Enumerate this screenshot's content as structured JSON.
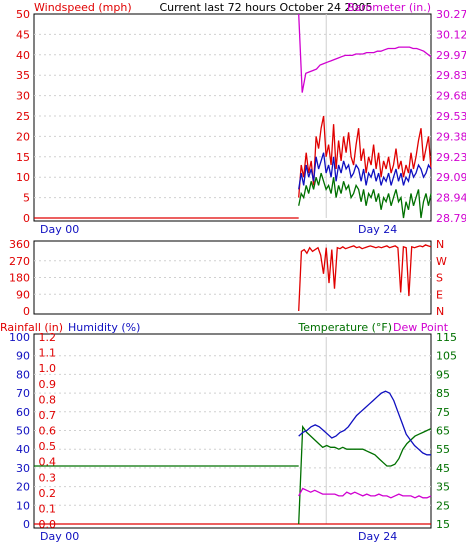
{
  "header": {
    "title": "Current last 72 hours October 24 2005",
    "left_label": "Windspeed (mph)",
    "right_label": "Barometer (in.)"
  },
  "colors": {
    "speed": "#e00000",
    "gust": "#1010c0",
    "avg": "#007000",
    "baro": "#d000d0",
    "direction": "#e00000",
    "rain": "#e00000",
    "humidity": "#1010c0",
    "temperature": "#007000",
    "dewpoint": "#d000d0",
    "grid": "#d0d0d0",
    "frame": "#000000"
  },
  "chart_data": [
    {
      "id": "wind",
      "type": "line",
      "xlabel_ticks": [
        "Day 00",
        "Day 24"
      ],
      "y_left": {
        "label": "Windspeed (mph)",
        "ticks": [
          "0",
          "5",
          "10",
          "15",
          "20",
          "25",
          "30",
          "35",
          "40",
          "45",
          "50"
        ],
        "range": [
          0,
          50
        ]
      },
      "y_right": {
        "label": "Barometer (in.)",
        "ticks": [
          "28.79",
          "28.94",
          "29.09",
          "29.23",
          "29.38",
          "29.53",
          "29.68",
          "29.83",
          "29.97",
          "30.12",
          "30.27"
        ],
        "range": [
          28.79,
          30.27
        ]
      },
      "grid": true,
      "series": [
        {
          "key": "speed",
          "axis": "left",
          "segments": [
            {
              "start_hour": 0,
              "end_hour": 48,
              "values": [
                0
              ]
            },
            {
              "start_hour": 48,
              "end_hour": 72,
              "values": [
                5,
                13,
                10,
                16,
                11,
                14,
                8,
                20,
                17,
                22,
                25,
                15,
                18,
                13,
                23,
                12,
                19,
                14,
                20,
                16,
                21,
                15,
                13,
                18,
                22,
                14,
                17,
                11,
                15,
                13,
                18,
                12,
                16,
                10,
                14,
                12,
                15,
                11,
                13,
                17,
                12,
                14,
                10,
                13,
                11,
                16,
                12,
                15,
                19,
                22,
                14,
                17,
                20,
                12
              ]
            }
          ]
        },
        {
          "key": "gust",
          "axis": "left",
          "segments": [
            {
              "start_hour": 48,
              "end_hour": 72,
              "values": [
                7,
                11,
                8,
                13,
                10,
                12,
                9,
                15,
                12,
                14,
                16,
                11,
                13,
                10,
                15,
                9,
                13,
                11,
                14,
                12,
                13,
                10,
                11,
                13,
                12,
                9,
                12,
                8,
                11,
                10,
                12,
                9,
                11,
                8,
                10,
                9,
                11,
                8,
                10,
                12,
                9,
                11,
                8,
                10,
                9,
                12,
                10,
                11,
                13,
                12,
                10,
                11,
                13,
                12
              ]
            }
          ]
        },
        {
          "key": "avg",
          "axis": "left",
          "segments": [
            {
              "start_hour": 48,
              "end_hour": 72,
              "values": [
                3,
                6,
                5,
                8,
                6,
                9,
                7,
                10,
                8,
                11,
                9,
                7,
                8,
                6,
                10,
                5,
                8,
                6,
                9,
                7,
                8,
                5,
                6,
                8,
                7,
                4,
                7,
                3,
                6,
                5,
                7,
                4,
                6,
                2,
                5,
                4,
                6,
                3,
                5,
                7,
                4,
                5,
                0,
                4,
                2,
                6,
                3,
                5,
                7,
                0,
                4,
                6,
                3,
                6
              ]
            }
          ]
        },
        {
          "key": "baro",
          "axis": "right",
          "segments": [
            {
              "start_hour": 48,
              "end_hour": 72,
              "values": [
                30.27,
                29.7,
                29.84,
                29.85,
                29.86,
                29.87,
                29.9,
                29.91,
                29.92,
                29.93,
                29.94,
                29.95,
                29.96,
                29.97,
                29.97,
                29.97,
                29.98,
                29.98,
                29.98,
                29.99,
                29.99,
                29.99,
                30.0,
                30.0,
                30.01,
                30.02,
                30.02,
                30.02,
                30.03,
                30.03,
                30.03,
                30.03,
                30.02,
                30.02,
                30.01,
                30.0,
                29.98,
                29.96
              ]
            }
          ]
        }
      ]
    },
    {
      "id": "direction",
      "type": "line",
      "xlabel_ticks": [],
      "y_left": {
        "ticks": [
          "0",
          "90",
          "180",
          "270",
          "360"
        ],
        "range": [
          0,
          360
        ]
      },
      "y_right": {
        "ticks": [
          "N",
          "W",
          "S",
          "E",
          "N"
        ]
      },
      "grid": true,
      "series": [
        {
          "key": "direction",
          "axis": "left",
          "segments": [
            {
              "start_hour": 48,
              "end_hour": 72,
              "values": [
                0,
                320,
                330,
                310,
                340,
                320,
                330,
                340,
                300,
                200,
                340,
                150,
                330,
                120,
                340,
                335,
                345,
                335,
                340,
                345,
                350,
                340,
                345,
                335,
                340,
                345,
                350,
                345,
                340,
                345,
                340,
                345,
                350,
                340,
                345,
                350,
                340,
                100,
                345,
                340,
                80,
                345,
                340,
                345,
                350,
                345,
                355,
                350,
                345
              ]
            }
          ]
        }
      ]
    },
    {
      "id": "climate",
      "type": "line",
      "xlabel_ticks": [
        "Day 00",
        "Day 24"
      ],
      "header_labels": {
        "rainfall": "Rainfall (in)",
        "humidity": "Humidity (%)",
        "temperature": "Temperature (°F)",
        "dewpoint": "Dew Point"
      },
      "y_left_humidity": {
        "ticks": [
          "0",
          "10",
          "20",
          "30",
          "40",
          "50",
          "60",
          "70",
          "80",
          "90",
          "100"
        ],
        "range": [
          0,
          100
        ]
      },
      "y_left_rain": {
        "ticks": [
          "0.0",
          "0.1",
          "0.2",
          "0.3",
          "0.4",
          "0.5",
          "0.6",
          "0.7",
          "0.8",
          "0.9",
          "1.0",
          "1.1",
          "1.2"
        ],
        "range": [
          0,
          1.2
        ]
      },
      "y_right_temp": {
        "ticks": [
          "15",
          "25",
          "35",
          "45",
          "55",
          "65",
          "75",
          "85",
          "95",
          "105",
          "115"
        ],
        "range": [
          15,
          115
        ]
      },
      "grid": true,
      "series": [
        {
          "key": "rain",
          "axis": "rain",
          "segments": [
            {
              "start_hour": 0,
              "end_hour": 72,
              "values": [
                0,
                0
              ]
            }
          ]
        },
        {
          "key": "temperature",
          "axis": "temp",
          "segments": [
            {
              "start_hour": 0,
              "end_hour": 48,
              "values": [
                46,
                46
              ]
            },
            {
              "start_hour": 48,
              "end_hour": 72,
              "values": [
                15,
                67,
                64,
                62,
                60,
                58,
                56,
                57,
                56,
                56,
                55,
                56,
                55,
                55,
                55,
                55,
                55,
                54,
                53,
                52,
                50,
                48,
                46,
                46,
                47,
                50,
                55,
                58,
                60,
                62,
                63,
                64,
                65,
                66
              ]
            }
          ]
        },
        {
          "key": "humidity",
          "axis": "humidity",
          "segments": [
            {
              "start_hour": 48,
              "end_hour": 72,
              "values": [
                47,
                49,
                50,
                52,
                53,
                52,
                50,
                48,
                46,
                47,
                49,
                50,
                52,
                55,
                58,
                60,
                62,
                64,
                66,
                68,
                70,
                71,
                70,
                66,
                60,
                54,
                48,
                45,
                42,
                40,
                38,
                37,
                37
              ]
            }
          ]
        },
        {
          "key": "dewpoint",
          "axis": "temp",
          "segments": [
            {
              "start_hour": 48,
              "end_hour": 72,
              "values": [
                30,
                34,
                33,
                32,
                33,
                32,
                31,
                31,
                31,
                31,
                30,
                30,
                32,
                31,
                32,
                31,
                30,
                31,
                30,
                30,
                31,
                30,
                30,
                29,
                30,
                31,
                30,
                30,
                30,
                29,
                30,
                29,
                29,
                30
              ]
            }
          ]
        }
      ]
    }
  ]
}
